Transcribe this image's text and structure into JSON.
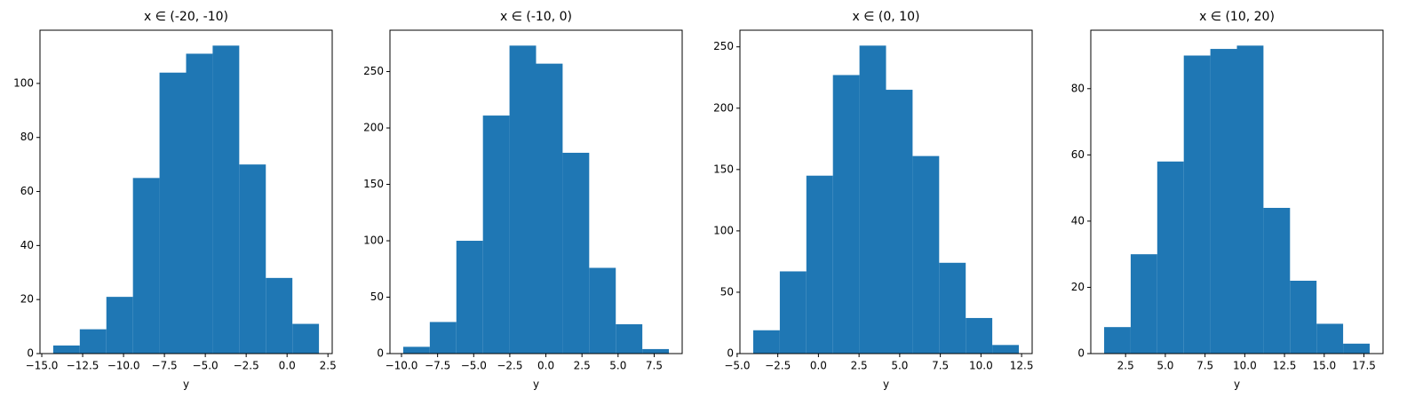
{
  "chart_data": [
    {
      "type": "histogram",
      "title": "x ∈ (-20, -10)",
      "x_label": "y",
      "color": "#1f77b4",
      "bins": [
        -14.3,
        -12.675,
        -11.05,
        -9.425,
        -7.8,
        -6.175,
        -4.55,
        -2.925,
        -1.3,
        0.325,
        1.95
      ],
      "values": [
        3,
        9,
        21,
        65,
        104,
        111,
        114,
        70,
        28,
        11
      ],
      "xlim": [
        -15.11,
        2.76
      ],
      "xticks": [
        {
          "value": -15,
          "label": "−15.0"
        },
        {
          "value": -12.5,
          "label": "−12.5"
        },
        {
          "value": -10,
          "label": "−10.0"
        },
        {
          "value": -7.5,
          "label": "−7.5"
        },
        {
          "value": -5,
          "label": "−5.0"
        },
        {
          "value": -2.5,
          "label": "−2.5"
        },
        {
          "value": 0,
          "label": "0.0"
        },
        {
          "value": 2.5,
          "label": "2.5"
        }
      ],
      "ylim": [
        0,
        119.7
      ],
      "yticks": [
        0,
        20,
        40,
        60,
        80,
        100
      ]
    },
    {
      "type": "histogram",
      "title": "x ∈ (-10, 0)",
      "x_label": "y",
      "color": "#1f77b4",
      "bins": [
        -9.88,
        -8.04,
        -6.2,
        -4.36,
        -2.52,
        -0.68,
        1.16,
        3.0,
        4.84,
        6.68,
        8.52
      ],
      "values": [
        6,
        28,
        100,
        211,
        273,
        257,
        178,
        76,
        26,
        4
      ],
      "xlim": [
        -10.8,
        9.44
      ],
      "xticks": [
        {
          "value": -10,
          "label": "−10.0"
        },
        {
          "value": -7.5,
          "label": "−7.5"
        },
        {
          "value": -5,
          "label": "−5.0"
        },
        {
          "value": -2.5,
          "label": "−2.5"
        },
        {
          "value": 0,
          "label": "0.0"
        },
        {
          "value": 2.5,
          "label": "2.5"
        },
        {
          "value": 5,
          "label": "5.0"
        },
        {
          "value": 7.5,
          "label": "7.5"
        }
      ],
      "ylim": [
        0,
        286.65
      ],
      "yticks": [
        0,
        50,
        100,
        150,
        200,
        250
      ]
    },
    {
      "type": "histogram",
      "title": "x ∈ (0, 10)",
      "x_label": "y",
      "color": "#1f77b4",
      "bins": [
        -4.01,
        -2.376,
        -0.742,
        0.892,
        2.526,
        4.16,
        5.794,
        7.428,
        9.062,
        10.696,
        12.33
      ],
      "values": [
        19,
        67,
        145,
        227,
        251,
        215,
        161,
        74,
        29,
        7
      ],
      "xlim": [
        -4.83,
        13.15
      ],
      "xticks": [
        {
          "value": -5,
          "label": "−5.0"
        },
        {
          "value": -2.5,
          "label": "−2.5"
        },
        {
          "value": 0,
          "label": "0.0"
        },
        {
          "value": 2.5,
          "label": "2.5"
        },
        {
          "value": 5,
          "label": "5.0"
        },
        {
          "value": 7.5,
          "label": "7.5"
        },
        {
          "value": 10,
          "label": "10.0"
        },
        {
          "value": 12.5,
          "label": "12.5"
        }
      ],
      "ylim": [
        0,
        263.55
      ],
      "yticks": [
        0,
        50,
        100,
        150,
        200,
        250
      ]
    },
    {
      "type": "histogram",
      "title": "x ∈ (10, 20)",
      "x_label": "y",
      "color": "#1f77b4",
      "bins": [
        1.15,
        2.821,
        4.492,
        6.163,
        7.834,
        9.505,
        11.176,
        12.847,
        14.518,
        16.189,
        17.86
      ],
      "values": [
        8,
        30,
        58,
        90,
        92,
        93,
        44,
        22,
        9,
        3
      ],
      "xlim": [
        0.31,
        18.7
      ],
      "xticks": [
        {
          "value": 2.5,
          "label": "2.5"
        },
        {
          "value": 5,
          "label": "5.0"
        },
        {
          "value": 7.5,
          "label": "7.5"
        },
        {
          "value": 10,
          "label": "10.0"
        },
        {
          "value": 12.5,
          "label": "12.5"
        },
        {
          "value": 15,
          "label": "15.0"
        },
        {
          "value": 17.5,
          "label": "17.5"
        }
      ],
      "ylim": [
        0,
        97.65
      ],
      "yticks": [
        0,
        20,
        40,
        60,
        80
      ]
    }
  ]
}
